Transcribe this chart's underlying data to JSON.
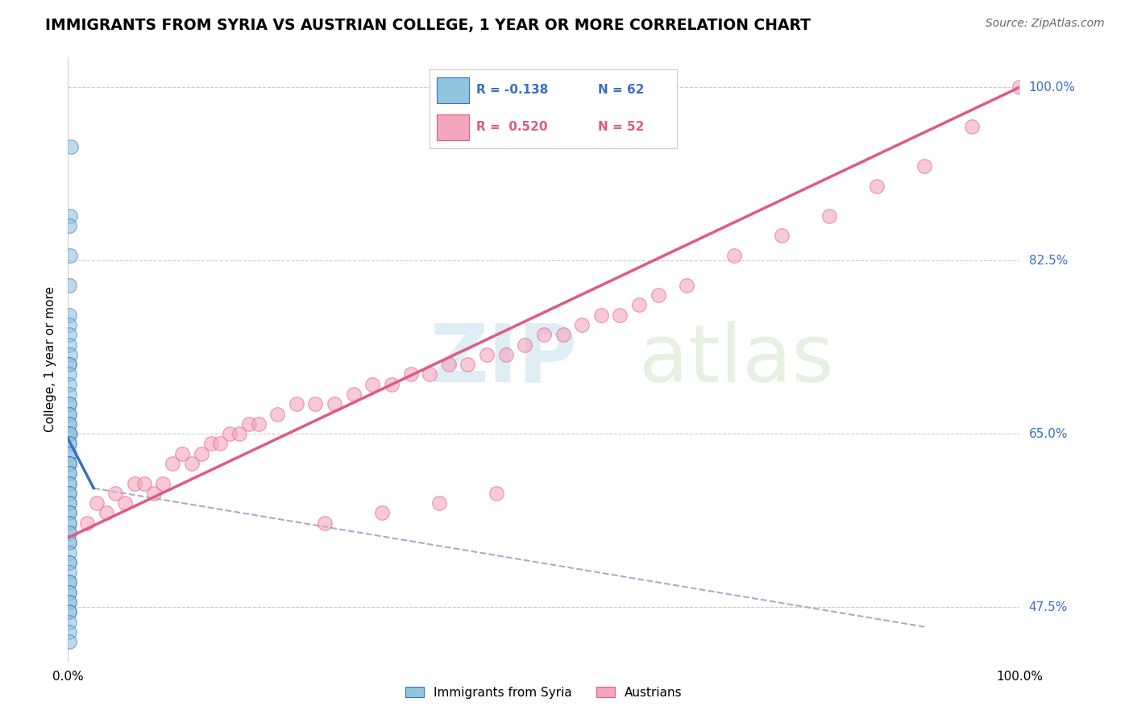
{
  "title": "IMMIGRANTS FROM SYRIA VS AUSTRIAN COLLEGE, 1 YEAR OR MORE CORRELATION CHART",
  "source_text": "Source: ZipAtlas.com",
  "ylabel": "College, 1 year or more",
  "xlim": [
    0,
    1
  ],
  "ylim_min": 0.42,
  "ylim_max": 1.03,
  "color_blue": "#92c5de",
  "color_pink": "#f4a6be",
  "color_blue_line": "#3a6fc4",
  "color_pink_line": "#e05a80",
  "color_dashed": "#aaaacc",
  "blue_scatter_x": [
    0.003,
    0.002,
    0.001,
    0.002,
    0.001,
    0.001,
    0.001,
    0.001,
    0.001,
    0.002,
    0.001,
    0.001,
    0.001,
    0.001,
    0.001,
    0.001,
    0.001,
    0.001,
    0.001,
    0.001,
    0.001,
    0.001,
    0.001,
    0.002,
    0.001,
    0.001,
    0.001,
    0.001,
    0.001,
    0.001,
    0.001,
    0.001,
    0.001,
    0.001,
    0.001,
    0.001,
    0.001,
    0.001,
    0.001,
    0.001,
    0.001,
    0.001,
    0.001,
    0.001,
    0.001,
    0.001,
    0.001,
    0.001,
    0.001,
    0.001,
    0.001,
    0.001,
    0.001,
    0.001,
    0.001,
    0.001,
    0.001,
    0.001,
    0.001,
    0.001,
    0.001,
    0.001
  ],
  "blue_scatter_y": [
    0.94,
    0.87,
    0.86,
    0.83,
    0.8,
    0.77,
    0.76,
    0.75,
    0.74,
    0.73,
    0.72,
    0.72,
    0.71,
    0.7,
    0.69,
    0.68,
    0.68,
    0.67,
    0.67,
    0.66,
    0.66,
    0.65,
    0.65,
    0.65,
    0.64,
    0.64,
    0.63,
    0.63,
    0.62,
    0.62,
    0.62,
    0.61,
    0.61,
    0.6,
    0.6,
    0.59,
    0.59,
    0.58,
    0.58,
    0.57,
    0.57,
    0.56,
    0.56,
    0.55,
    0.55,
    0.54,
    0.54,
    0.53,
    0.52,
    0.52,
    0.51,
    0.5,
    0.5,
    0.49,
    0.49,
    0.48,
    0.48,
    0.47,
    0.47,
    0.46,
    0.45,
    0.44
  ],
  "pink_scatter_x": [
    0.02,
    0.03,
    0.04,
    0.05,
    0.06,
    0.07,
    0.08,
    0.09,
    0.1,
    0.11,
    0.12,
    0.13,
    0.14,
    0.15,
    0.16,
    0.17,
    0.18,
    0.19,
    0.2,
    0.22,
    0.24,
    0.26,
    0.28,
    0.3,
    0.32,
    0.34,
    0.36,
    0.38,
    0.4,
    0.42,
    0.44,
    0.46,
    0.48,
    0.5,
    0.52,
    0.54,
    0.56,
    0.58,
    0.6,
    0.62,
    0.65,
    0.7,
    0.75,
    0.8,
    0.85,
    0.9,
    0.95,
    1.0,
    0.27,
    0.33,
    0.39,
    0.45
  ],
  "pink_scatter_y": [
    0.56,
    0.58,
    0.57,
    0.59,
    0.58,
    0.6,
    0.6,
    0.59,
    0.6,
    0.62,
    0.63,
    0.62,
    0.63,
    0.64,
    0.64,
    0.65,
    0.65,
    0.66,
    0.66,
    0.67,
    0.68,
    0.68,
    0.68,
    0.69,
    0.7,
    0.7,
    0.71,
    0.71,
    0.72,
    0.72,
    0.73,
    0.73,
    0.74,
    0.75,
    0.75,
    0.76,
    0.77,
    0.77,
    0.78,
    0.79,
    0.8,
    0.83,
    0.85,
    0.87,
    0.9,
    0.92,
    0.96,
    1.0,
    0.56,
    0.57,
    0.58,
    0.59
  ],
  "blue_line_x0": 0.0,
  "blue_line_x1": 0.027,
  "blue_line_y0": 0.645,
  "blue_line_y1": 0.595,
  "pink_line_x0": 0.0,
  "pink_line_x1": 1.0,
  "pink_line_y0": 0.545,
  "pink_line_y1": 1.0,
  "dashed_line_x0": 0.027,
  "dashed_line_x1": 0.9,
  "dashed_line_y0": 0.595,
  "dashed_line_y1": 0.455,
  "yticks": [
    0.475,
    0.65,
    0.825,
    1.0
  ],
  "ytick_labels": [
    "47.5%",
    "65.0%",
    "82.5%",
    "100.0%"
  ],
  "legend_r1": "R = -0.138",
  "legend_n1": "N = 62",
  "legend_r2": "R = 0.520",
  "legend_n2": "N = 52",
  "watermark_zip": "ZIP",
  "watermark_atlas": "atlas"
}
